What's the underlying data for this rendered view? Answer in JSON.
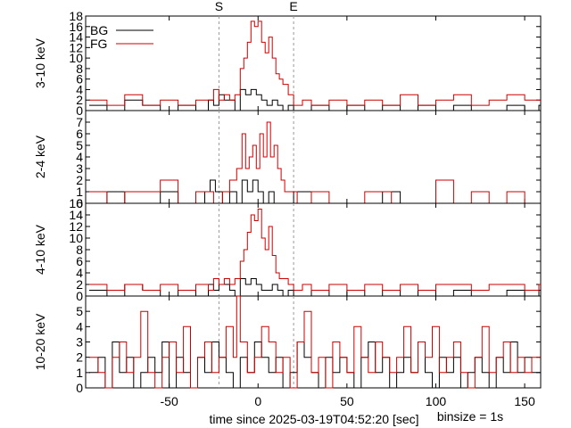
{
  "chart_data": {
    "type": "line",
    "style": "histogram-steps",
    "xlabel": "time since 2025-03-19T04:52:20 [sec]",
    "binsize_label": "binsize = 1s",
    "markers": [
      {
        "label": "S",
        "x": -22
      },
      {
        "label": "E",
        "x": 20
      }
    ],
    "xlim": [
      -97,
      159
    ],
    "xticks": [
      -50,
      0,
      50,
      100,
      150
    ],
    "legend": {
      "position": "top-left",
      "entries": [
        {
          "label": "BG",
          "color": "#000000"
        },
        {
          "label": "FG",
          "color": "#cc0000"
        }
      ]
    },
    "colors": {
      "BG": "#000000",
      "FG": "#cc0000",
      "marker": "#999999"
    },
    "panels": [
      {
        "ylabel": "3-10 keV",
        "ylim": [
          0,
          18
        ],
        "yticks": [
          0,
          2,
          4,
          6,
          8,
          10,
          12,
          14,
          16,
          18
        ],
        "series": [
          {
            "name": "BG",
            "x": [
              -95,
              -85,
              -75,
              -65,
              -55,
              -45,
              -35,
              -28,
              -25,
              -22,
              -19,
              -16,
              -13,
              -10,
              -7,
              -4,
              -1,
              2,
              5,
              8,
              11,
              14,
              17,
              20,
              30,
              40,
              50,
              60,
              70,
              80,
              90,
              100,
              110,
              120,
              130,
              140,
              150,
              158
            ],
            "values": [
              1,
              0,
              2,
              1,
              0,
              1,
              0,
              2,
              1,
              3,
              2,
              2,
              0,
              4,
              3,
              4,
              3,
              2,
              1,
              2,
              1,
              0,
              1,
              0,
              1,
              0,
              1,
              0,
              1,
              0,
              1,
              0,
              1,
              0,
              0,
              1,
              0,
              1
            ]
          },
          {
            "name": "FG",
            "x": [
              -95,
              -85,
              -75,
              -65,
              -55,
              -45,
              -35,
              -28,
              -25,
              -22,
              -19,
              -16,
              -13,
              -10,
              -8,
              -6,
              -4,
              -2,
              0,
              2,
              4,
              6,
              8,
              10,
              12,
              14,
              17,
              20,
              25,
              30,
              40,
              50,
              60,
              70,
              80,
              90,
              100,
              110,
              120,
              130,
              140,
              150,
              158
            ],
            "values": [
              2,
              1,
              3,
              1,
              2,
              1,
              2,
              2,
              4,
              2,
              3,
              2,
              3,
              8,
              10,
              13,
              17,
              16,
              17,
              13,
              11,
              14,
              10,
              7,
              6,
              5,
              3,
              1,
              2,
              1,
              2,
              1,
              2,
              1,
              3,
              1,
              2,
              3,
              1,
              2,
              3,
              2,
              2
            ]
          }
        ]
      },
      {
        "ylabel": "2-4 keV",
        "ylim": [
          0,
          8
        ],
        "yticks": [
          0,
          1,
          2,
          3,
          4,
          5,
          6,
          7
        ],
        "series": [
          {
            "name": "BG",
            "x": [
              -95,
              -85,
              -75,
              -65,
              -55,
              -45,
              -35,
              -30,
              -27,
              -24,
              -20,
              -16,
              -12,
              -9,
              -6,
              -3,
              0,
              3,
              6,
              9,
              12,
              15,
              20,
              30,
              40,
              50,
              60,
              70,
              80,
              90,
              100,
              110,
              120,
              130,
              140,
              150,
              158
            ],
            "values": [
              0,
              1,
              0,
              0,
              1,
              0,
              0,
              1,
              2,
              1,
              0,
              1,
              0,
              2,
              1,
              2,
              1,
              0,
              1,
              0,
              0,
              0,
              1,
              0,
              0,
              0,
              0,
              1,
              0,
              0,
              0,
              0,
              0,
              0,
              0,
              0,
              0
            ]
          },
          {
            "name": "FG",
            "x": [
              -95,
              -85,
              -75,
              -55,
              -45,
              -35,
              -25,
              -20,
              -16,
              -12,
              -9,
              -7,
              -5,
              -3,
              -1,
              1,
              3,
              5,
              7,
              9,
              11,
              13,
              15,
              18,
              22,
              30,
              40,
              50,
              60,
              75,
              90,
              100,
              110,
              120,
              130,
              140,
              150,
              158
            ],
            "values": [
              1,
              0,
              1,
              2,
              0,
              1,
              0,
              1,
              2,
              3,
              6,
              3,
              4,
              5,
              3,
              6,
              4,
              7,
              4,
              5,
              3,
              2,
              1,
              1,
              0,
              1,
              0,
              0,
              1,
              0,
              0,
              2,
              0,
              1,
              0,
              1,
              0,
              0
            ]
          }
        ]
      },
      {
        "ylabel": "4-10 keV",
        "ylim": [
          0,
          16
        ],
        "yticks": [
          0,
          2,
          4,
          6,
          8,
          10,
          12,
          14,
          16
        ],
        "series": [
          {
            "name": "BG",
            "x": [
              -95,
              -85,
              -75,
              -65,
              -55,
              -45,
              -35,
              -28,
              -25,
              -22,
              -19,
              -16,
              -13,
              -10,
              -7,
              -4,
              -1,
              2,
              5,
              8,
              11,
              14,
              17,
              20,
              30,
              40,
              50,
              60,
              70,
              80,
              90,
              100,
              110,
              120,
              130,
              140,
              150,
              158
            ],
            "values": [
              1,
              0,
              2,
              1,
              0,
              1,
              0,
              2,
              1,
              2,
              2,
              1,
              0,
              3,
              2,
              3,
              2,
              1,
              1,
              2,
              1,
              0,
              1,
              0,
              1,
              0,
              1,
              0,
              1,
              0,
              1,
              0,
              1,
              0,
              0,
              1,
              0,
              1
            ]
          },
          {
            "name": "FG",
            "x": [
              -95,
              -85,
              -75,
              -65,
              -55,
              -45,
              -35,
              -28,
              -25,
              -22,
              -19,
              -16,
              -13,
              -10,
              -8,
              -6,
              -4,
              -2,
              0,
              2,
              4,
              6,
              8,
              10,
              12,
              14,
              17,
              20,
              25,
              30,
              40,
              50,
              60,
              70,
              80,
              90,
              100,
              110,
              120,
              130,
              140,
              150,
              158
            ],
            "values": [
              2,
              1,
              2,
              1,
              2,
              1,
              2,
              1,
              3,
              2,
              3,
              2,
              3,
              6,
              8,
              11,
              14,
              13,
              15,
              10,
              8,
              12,
              7,
              4,
              3,
              3,
              2,
              1,
              2,
              1,
              2,
              1,
              2,
              1,
              2,
              1,
              2,
              2,
              1,
              2,
              2,
              1,
              2
            ]
          }
        ]
      },
      {
        "ylabel": "10-20 keV",
        "ylim": [
          0,
          6
        ],
        "yticks": [
          0,
          1,
          2,
          3,
          4,
          5
        ],
        "series": [
          {
            "name": "BG",
            "x": [
              -95,
              -90,
              -86,
              -82,
              -78,
              -74,
              -70,
              -66,
              -62,
              -58,
              -54,
              -50,
              -46,
              -42,
              -38,
              -34,
              -30,
              -26,
              -22,
              -18,
              -14,
              -10,
              -6,
              -2,
              2,
              6,
              10,
              14,
              18,
              22,
              26,
              30,
              34,
              38,
              42,
              46,
              50,
              54,
              58,
              62,
              66,
              70,
              74,
              78,
              82,
              86,
              90,
              94,
              98,
              102,
              106,
              110,
              114,
              118,
              122,
              126,
              130,
              134,
              138,
              142,
              146,
              150,
              154
            ],
            "values": [
              1,
              2,
              0,
              3,
              1,
              2,
              0,
              1,
              2,
              1,
              3,
              0,
              2,
              1,
              0,
              2,
              1,
              3,
              2,
              1,
              0,
              2,
              1,
              3,
              2,
              1,
              2,
              0,
              1,
              3,
              2,
              1,
              0,
              2,
              1,
              2,
              1,
              0,
              2,
              3,
              1,
              2,
              0,
              1,
              2,
              1,
              3,
              1,
              0,
              2,
              1,
              2,
              0,
              1,
              2,
              1,
              0,
              2,
              1,
              3,
              1,
              2,
              1
            ]
          },
          {
            "name": "FG",
            "x": [
              -95,
              -90,
              -86,
              -82,
              -78,
              -74,
              -70,
              -66,
              -62,
              -58,
              -54,
              -50,
              -46,
              -42,
              -38,
              -34,
              -30,
              -26,
              -22,
              -18,
              -14,
              -12,
              -10,
              -6,
              -2,
              2,
              6,
              10,
              14,
              18,
              22,
              26,
              30,
              34,
              38,
              42,
              46,
              50,
              54,
              58,
              62,
              66,
              70,
              74,
              78,
              82,
              86,
              90,
              94,
              98,
              102,
              106,
              110,
              114,
              118,
              122,
              126,
              130,
              134,
              138,
              142,
              146,
              150,
              154
            ],
            "values": [
              2,
              1,
              0,
              2,
              3,
              1,
              2,
              5,
              1,
              0,
              2,
              3,
              1,
              4,
              0,
              2,
              3,
              1,
              2,
              4,
              2,
              6,
              3,
              1,
              2,
              4,
              3,
              1,
              2,
              0,
              3,
              5,
              1,
              2,
              0,
              3,
              2,
              1,
              4,
              2,
              1,
              3,
              2,
              1,
              2,
              4,
              1,
              3,
              2,
              4,
              1,
              2,
              3,
              1,
              0,
              2,
              4,
              1,
              2,
              3,
              1,
              2,
              1,
              2
            ]
          }
        ]
      }
    ]
  }
}
